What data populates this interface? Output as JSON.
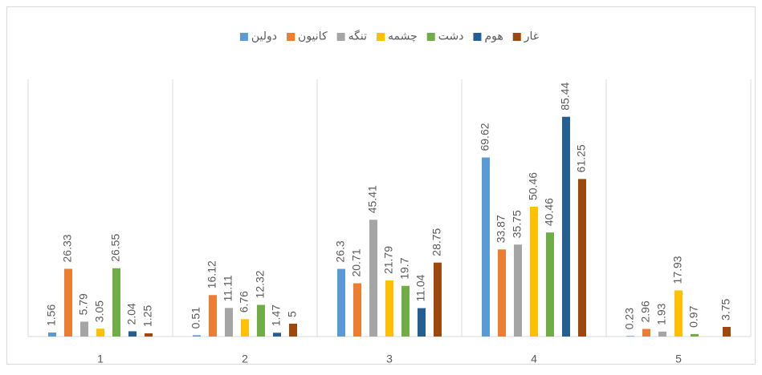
{
  "chart_data": {
    "type": "bar",
    "categories": [
      "1",
      "2",
      "3",
      "4",
      "5"
    ],
    "series": [
      {
        "name": "دولین",
        "color": "#5b9bd5",
        "values": [
          1.56,
          0.51,
          26.3,
          69.62,
          0.23
        ]
      },
      {
        "name": "کانیون",
        "color": "#ed7d31",
        "values": [
          26.33,
          16.12,
          20.71,
          33.87,
          2.96
        ]
      },
      {
        "name": "تنگه",
        "color": "#a5a5a5",
        "values": [
          5.79,
          11.11,
          45.41,
          35.75,
          1.93
        ]
      },
      {
        "name": "چشمه",
        "color": "#ffc000",
        "values": [
          3.05,
          6.76,
          21.79,
          50.46,
          17.93
        ]
      },
      {
        "name": "دشت",
        "color": "#70ad47",
        "values": [
          26.55,
          12.32,
          19.7,
          40.46,
          0.97
        ]
      },
      {
        "name": "هوم",
        "color": "#255e91",
        "values": [
          2.04,
          1.47,
          11.04,
          85.44,
          null
        ]
      },
      {
        "name": "غار",
        "color": "#9e480e",
        "values": [
          1.25,
          5,
          28.75,
          61.25,
          3.75
        ]
      }
    ],
    "ylim": [
      0,
      100
    ]
  }
}
